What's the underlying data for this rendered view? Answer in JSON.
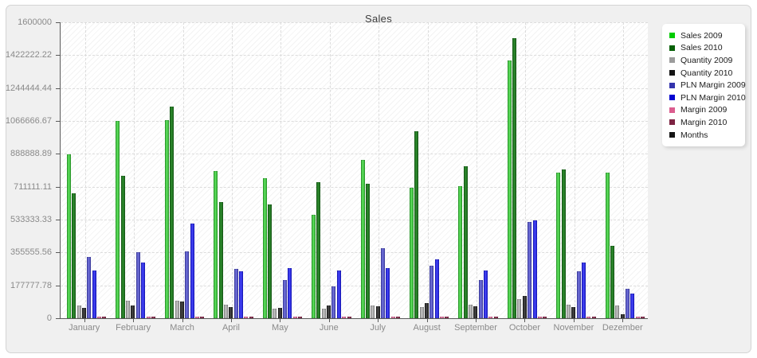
{
  "title": "Sales",
  "chart_data": {
    "type": "bar",
    "title": "Sales",
    "categories": [
      "January",
      "February",
      "March",
      "April",
      "May",
      "June",
      "July",
      "August",
      "September",
      "October",
      "November",
      "Dezember"
    ],
    "series": [
      {
        "name": "Sales 2009",
        "legend_color": "#00cc00",
        "bar_base": "#28a428",
        "bar_light": "#5fe05f",
        "values": [
          885000,
          1065000,
          1070000,
          795000,
          755000,
          560000,
          855000,
          705000,
          715000,
          1395000,
          785000,
          785000
        ]
      },
      {
        "name": "Sales 2010",
        "legend_color": "#086108",
        "bar_base": "#176117",
        "bar_light": "#2e8b2e",
        "values": [
          675000,
          770000,
          1145000,
          630000,
          615000,
          735000,
          725000,
          1010000,
          820000,
          1515000,
          805000,
          390000
        ]
      },
      {
        "name": "Quantity 2009",
        "legend_color": "#9c9c9c",
        "bar_base": "#8f8f8f",
        "bar_light": "#c2c2c2",
        "values": [
          70000,
          95000,
          95000,
          72000,
          50000,
          52000,
          68000,
          60000,
          72000,
          105000,
          75000,
          68000
        ]
      },
      {
        "name": "Quantity 2010",
        "legend_color": "#141414",
        "bar_base": "#161616",
        "bar_light": "#484848",
        "values": [
          58000,
          68000,
          90000,
          60000,
          58000,
          70000,
          65000,
          80000,
          64000,
          120000,
          62000,
          23000
        ]
      },
      {
        "name": "PLN Margin 2009",
        "legend_color": "#3434ad",
        "bar_base": "#3d3dae",
        "bar_light": "#7272d8",
        "values": [
          330000,
          355000,
          360000,
          265000,
          205000,
          170000,
          380000,
          285000,
          205000,
          520000,
          255000,
          160000
        ]
      },
      {
        "name": "PLN Margin 2010",
        "legend_color": "#0505d0",
        "bar_base": "#1414cc",
        "bar_light": "#4747f5",
        "values": [
          260000,
          300000,
          510000,
          255000,
          270000,
          260000,
          270000,
          320000,
          260000,
          530000,
          300000,
          135000
        ]
      },
      {
        "name": "Margin 2009",
        "legend_color": "#db5d8f",
        "bar_base": "#d85c8e",
        "bar_light": "#f090b8",
        "values": [
          8000,
          8000,
          8000,
          8000,
          8000,
          8000,
          8000,
          8000,
          8000,
          8000,
          8000,
          8000
        ]
      },
      {
        "name": "Margin 2010",
        "legend_color": "#7d2342",
        "bar_base": "#7c2340",
        "bar_light": "#a04468",
        "values": [
          7000,
          7000,
          7000,
          7000,
          7000,
          7000,
          7000,
          7000,
          7000,
          7000,
          7000,
          7000
        ]
      },
      {
        "name": "Months",
        "legend_color": "#141414",
        "bar_base": "#141414",
        "bar_light": "#333333",
        "values": [
          0,
          0,
          0,
          0,
          0,
          0,
          0,
          0,
          0,
          0,
          0,
          0
        ]
      }
    ],
    "ylim": [
      0,
      1600000
    ],
    "ytick_labels": [
      "1600000",
      "1422222.22",
      "1244444.44",
      "1066666.67",
      "888888.89",
      "711111.11",
      "533333.33",
      "355555.56",
      "177777.78",
      "0"
    ],
    "xlabel": "",
    "ylabel": "",
    "grid": "dashed horizontal at ticks, dashed vertical at category centers",
    "legend_position": "right",
    "plot_background": "white with diagonal hatch"
  }
}
